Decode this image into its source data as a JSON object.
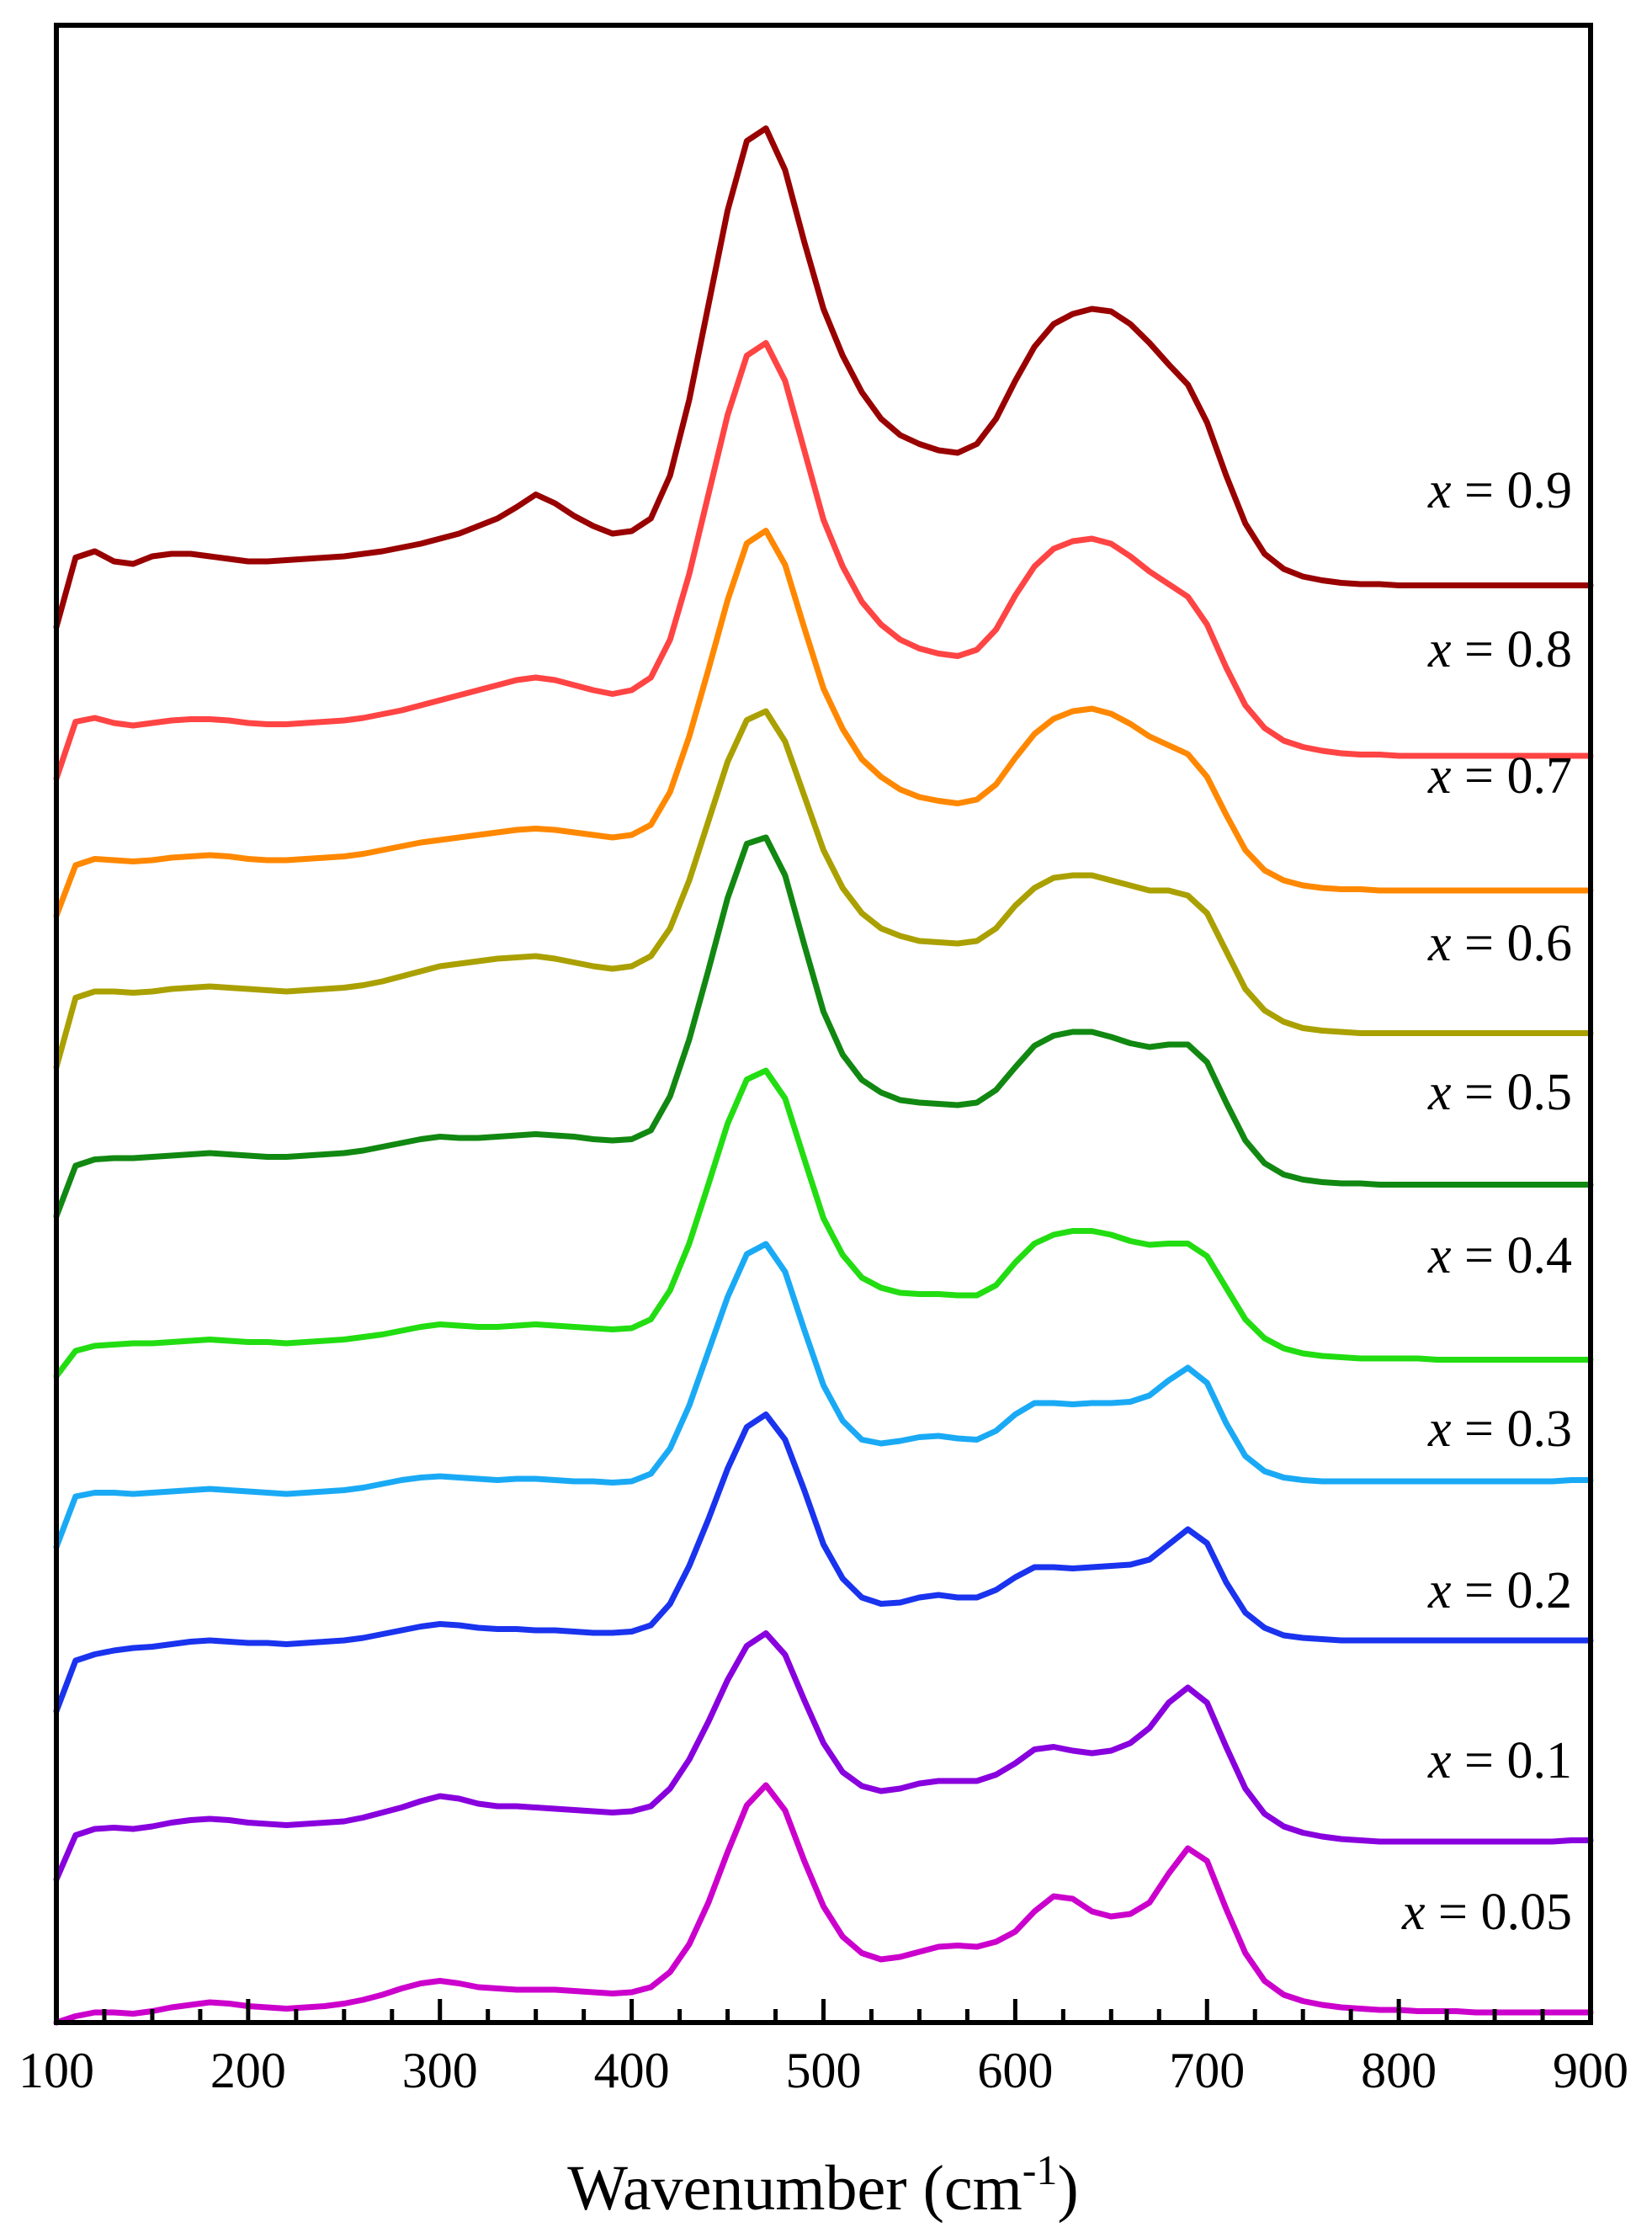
{
  "chart_data": {
    "type": "line",
    "title": "",
    "xlabel": "Wavenumber (cm",
    "xlabel_sup": "-1",
    "xlabel_close": ")",
    "ylabel": "",
    "xlim": [
      100,
      900
    ],
    "x_ticks": [
      100,
      200,
      300,
      400,
      500,
      600,
      700,
      800,
      900
    ],
    "y_axis_shown": false,
    "grid": false,
    "legend": "inline-right",
    "x": [
      100,
      110,
      120,
      130,
      140,
      150,
      160,
      170,
      180,
      190,
      200,
      210,
      220,
      230,
      240,
      250,
      260,
      270,
      280,
      290,
      300,
      310,
      320,
      330,
      340,
      350,
      360,
      370,
      380,
      390,
      400,
      410,
      420,
      430,
      440,
      450,
      460,
      470,
      480,
      490,
      500,
      510,
      520,
      530,
      540,
      550,
      560,
      570,
      580,
      590,
      600,
      610,
      620,
      630,
      640,
      650,
      660,
      670,
      680,
      690,
      700,
      710,
      720,
      730,
      740,
      750,
      760,
      770,
      780,
      790,
      800,
      810,
      820,
      830,
      840,
      850,
      860,
      870,
      880,
      890,
      900
    ],
    "series": [
      {
        "label_var": "x",
        "label_val": "0.05",
        "color": "#cc00cc",
        "values": [
          0.0,
          0.05,
          0.08,
          0.08,
          0.07,
          0.09,
          0.12,
          0.14,
          0.16,
          0.15,
          0.13,
          0.12,
          0.11,
          0.12,
          0.13,
          0.15,
          0.18,
          0.22,
          0.27,
          0.31,
          0.33,
          0.31,
          0.28,
          0.27,
          0.26,
          0.26,
          0.26,
          0.25,
          0.24,
          0.23,
          0.24,
          0.28,
          0.4,
          0.62,
          0.95,
          1.35,
          1.72,
          1.88,
          1.68,
          1.28,
          0.92,
          0.68,
          0.55,
          0.5,
          0.52,
          0.56,
          0.6,
          0.61,
          0.6,
          0.64,
          0.72,
          0.88,
          1.0,
          0.98,
          0.88,
          0.84,
          0.86,
          0.95,
          1.18,
          1.38,
          1.28,
          0.9,
          0.55,
          0.33,
          0.22,
          0.17,
          0.14,
          0.12,
          0.11,
          0.1,
          0.1,
          0.09,
          0.09,
          0.09,
          0.08,
          0.08,
          0.08,
          0.08,
          0.08,
          0.08,
          0.08
        ]
      },
      {
        "label_var": "x",
        "label_val": "0.1",
        "color": "#8800dd",
        "values": [
          0.0,
          0.35,
          0.4,
          0.41,
          0.4,
          0.42,
          0.45,
          0.47,
          0.48,
          0.47,
          0.45,
          0.44,
          0.43,
          0.44,
          0.45,
          0.46,
          0.49,
          0.53,
          0.57,
          0.62,
          0.66,
          0.64,
          0.6,
          0.58,
          0.58,
          0.57,
          0.56,
          0.55,
          0.54,
          0.53,
          0.54,
          0.58,
          0.72,
          0.95,
          1.25,
          1.58,
          1.85,
          1.95,
          1.78,
          1.42,
          1.08,
          0.85,
          0.74,
          0.7,
          0.72,
          0.76,
          0.78,
          0.78,
          0.78,
          0.83,
          0.92,
          1.03,
          1.05,
          1.02,
          1.0,
          1.02,
          1.08,
          1.2,
          1.4,
          1.52,
          1.4,
          1.05,
          0.72,
          0.52,
          0.42,
          0.37,
          0.34,
          0.32,
          0.31,
          0.3,
          0.3,
          0.3,
          0.3,
          0.3,
          0.3,
          0.3,
          0.3,
          0.3,
          0.3,
          0.31,
          0.31
        ]
      },
      {
        "label_var": "x",
        "label_val": "0.2",
        "color": "#1a33ee",
        "values": [
          0.0,
          0.4,
          0.45,
          0.48,
          0.5,
          0.51,
          0.53,
          0.55,
          0.56,
          0.55,
          0.54,
          0.54,
          0.53,
          0.54,
          0.55,
          0.56,
          0.58,
          0.61,
          0.64,
          0.67,
          0.69,
          0.68,
          0.66,
          0.65,
          0.65,
          0.64,
          0.64,
          0.63,
          0.62,
          0.62,
          0.63,
          0.68,
          0.85,
          1.15,
          1.52,
          1.92,
          2.25,
          2.35,
          2.15,
          1.75,
          1.32,
          1.05,
          0.9,
          0.85,
          0.86,
          0.9,
          0.92,
          0.9,
          0.9,
          0.96,
          1.06,
          1.14,
          1.14,
          1.13,
          1.14,
          1.15,
          1.16,
          1.2,
          1.32,
          1.44,
          1.33,
          1.02,
          0.78,
          0.66,
          0.6,
          0.58,
          0.57,
          0.56,
          0.56,
          0.56,
          0.56,
          0.56,
          0.56,
          0.56,
          0.56,
          0.56,
          0.56,
          0.56,
          0.56,
          0.56,
          0.56
        ]
      },
      {
        "label_var": "x",
        "label_val": "0.3",
        "color": "#1aaaf5",
        "values": [
          0.0,
          0.4,
          0.43,
          0.43,
          0.42,
          0.43,
          0.44,
          0.45,
          0.46,
          0.45,
          0.44,
          0.43,
          0.42,
          0.43,
          0.44,
          0.45,
          0.47,
          0.5,
          0.53,
          0.55,
          0.56,
          0.55,
          0.54,
          0.53,
          0.54,
          0.54,
          0.53,
          0.52,
          0.52,
          0.51,
          0.52,
          0.58,
          0.78,
          1.12,
          1.55,
          1.98,
          2.32,
          2.4,
          2.18,
          1.72,
          1.28,
          1.0,
          0.85,
          0.82,
          0.84,
          0.87,
          0.88,
          0.86,
          0.85,
          0.92,
          1.05,
          1.14,
          1.14,
          1.13,
          1.14,
          1.14,
          1.15,
          1.2,
          1.32,
          1.42,
          1.3,
          0.98,
          0.72,
          0.6,
          0.55,
          0.53,
          0.52,
          0.52,
          0.52,
          0.52,
          0.52,
          0.52,
          0.52,
          0.52,
          0.52,
          0.52,
          0.52,
          0.52,
          0.52,
          0.53,
          0.53
        ]
      },
      {
        "label_var": "x",
        "label_val": "0.4",
        "color": "#22dd11",
        "values": [
          0.0,
          0.2,
          0.24,
          0.25,
          0.26,
          0.26,
          0.27,
          0.28,
          0.29,
          0.28,
          0.27,
          0.27,
          0.26,
          0.27,
          0.28,
          0.29,
          0.31,
          0.33,
          0.36,
          0.39,
          0.41,
          0.4,
          0.39,
          0.39,
          0.4,
          0.41,
          0.4,
          0.39,
          0.38,
          0.37,
          0.38,
          0.45,
          0.68,
          1.05,
          1.52,
          2.0,
          2.35,
          2.42,
          2.2,
          1.72,
          1.25,
          0.96,
          0.78,
          0.7,
          0.66,
          0.65,
          0.65,
          0.64,
          0.64,
          0.72,
          0.9,
          1.05,
          1.12,
          1.15,
          1.15,
          1.12,
          1.07,
          1.04,
          1.05,
          1.05,
          0.95,
          0.7,
          0.45,
          0.3,
          0.22,
          0.18,
          0.16,
          0.15,
          0.14,
          0.14,
          0.14,
          0.14,
          0.13,
          0.13,
          0.13,
          0.13,
          0.13,
          0.13,
          0.13,
          0.13,
          0.13
        ]
      },
      {
        "label_var": "x",
        "label_val": "0.5",
        "color": "#118811",
        "values": [
          0.0,
          0.4,
          0.45,
          0.46,
          0.46,
          0.47,
          0.48,
          0.49,
          0.5,
          0.49,
          0.48,
          0.47,
          0.47,
          0.48,
          0.49,
          0.5,
          0.52,
          0.55,
          0.58,
          0.61,
          0.63,
          0.62,
          0.62,
          0.63,
          0.64,
          0.65,
          0.64,
          0.63,
          0.61,
          0.6,
          0.61,
          0.68,
          0.95,
          1.4,
          1.95,
          2.52,
          2.95,
          3.0,
          2.7,
          2.15,
          1.62,
          1.28,
          1.08,
          0.98,
          0.92,
          0.9,
          0.89,
          0.88,
          0.9,
          1.0,
          1.18,
          1.35,
          1.43,
          1.46,
          1.46,
          1.42,
          1.37,
          1.34,
          1.36,
          1.36,
          1.22,
          0.9,
          0.6,
          0.42,
          0.33,
          0.29,
          0.27,
          0.26,
          0.26,
          0.25,
          0.25,
          0.25,
          0.25,
          0.25,
          0.25,
          0.25,
          0.25,
          0.25,
          0.25,
          0.25,
          0.25
        ]
      },
      {
        "label_var": "x",
        "label_val": "0.6",
        "color": "#aaa000",
        "values": [
          0.0,
          0.55,
          0.6,
          0.6,
          0.59,
          0.6,
          0.62,
          0.63,
          0.64,
          0.63,
          0.62,
          0.61,
          0.6,
          0.61,
          0.62,
          0.63,
          0.65,
          0.68,
          0.72,
          0.76,
          0.8,
          0.82,
          0.84,
          0.86,
          0.87,
          0.88,
          0.86,
          0.83,
          0.8,
          0.78,
          0.8,
          0.88,
          1.1,
          1.48,
          1.95,
          2.42,
          2.75,
          2.82,
          2.58,
          2.15,
          1.72,
          1.42,
          1.22,
          1.1,
          1.04,
          1.0,
          0.99,
          0.98,
          1.0,
          1.1,
          1.28,
          1.42,
          1.5,
          1.52,
          1.52,
          1.48,
          1.44,
          1.4,
          1.4,
          1.36,
          1.22,
          0.92,
          0.62,
          0.45,
          0.36,
          0.31,
          0.29,
          0.28,
          0.27,
          0.27,
          0.27,
          0.27,
          0.27,
          0.27,
          0.27,
          0.27,
          0.27,
          0.27,
          0.27,
          0.27,
          0.27
        ]
      },
      {
        "label_var": "x",
        "label_val": "0.7",
        "color": "#ff8800",
        "values": [
          0.0,
          0.4,
          0.45,
          0.44,
          0.43,
          0.44,
          0.46,
          0.47,
          0.48,
          0.47,
          0.45,
          0.44,
          0.44,
          0.45,
          0.46,
          0.47,
          0.49,
          0.52,
          0.55,
          0.58,
          0.6,
          0.62,
          0.64,
          0.66,
          0.68,
          0.69,
          0.68,
          0.66,
          0.64,
          0.62,
          0.64,
          0.72,
          0.98,
          1.42,
          1.95,
          2.5,
          2.95,
          3.05,
          2.78,
          2.28,
          1.8,
          1.48,
          1.24,
          1.1,
          1.0,
          0.94,
          0.91,
          0.89,
          0.92,
          1.04,
          1.25,
          1.44,
          1.56,
          1.62,
          1.64,
          1.6,
          1.52,
          1.42,
          1.35,
          1.28,
          1.1,
          0.8,
          0.52,
          0.36,
          0.28,
          0.24,
          0.22,
          0.21,
          0.21,
          0.2,
          0.2,
          0.2,
          0.2,
          0.2,
          0.2,
          0.2,
          0.2,
          0.2,
          0.2,
          0.2,
          0.2
        ]
      },
      {
        "label_var": "x",
        "label_val": "0.8",
        "color": "#ff4444",
        "values": [
          0.0,
          0.45,
          0.48,
          0.44,
          0.42,
          0.44,
          0.46,
          0.47,
          0.47,
          0.46,
          0.44,
          0.43,
          0.43,
          0.44,
          0.45,
          0.46,
          0.48,
          0.51,
          0.54,
          0.58,
          0.62,
          0.66,
          0.7,
          0.74,
          0.78,
          0.8,
          0.78,
          0.74,
          0.7,
          0.67,
          0.7,
          0.8,
          1.1,
          1.62,
          2.25,
          2.88,
          3.35,
          3.45,
          3.15,
          2.6,
          2.05,
          1.68,
          1.4,
          1.22,
          1.1,
          1.03,
          0.99,
          0.97,
          1.02,
          1.18,
          1.45,
          1.68,
          1.82,
          1.88,
          1.9,
          1.86,
          1.76,
          1.64,
          1.54,
          1.44,
          1.22,
          0.88,
          0.58,
          0.4,
          0.3,
          0.25,
          0.22,
          0.2,
          0.19,
          0.19,
          0.18,
          0.18,
          0.18,
          0.18,
          0.18,
          0.18,
          0.18,
          0.18,
          0.18,
          0.18,
          0.18
        ]
      },
      {
        "label_var": "x",
        "label_val": "0.9",
        "color": "#990000",
        "values": [
          0.0,
          0.55,
          0.6,
          0.52,
          0.5,
          0.56,
          0.58,
          0.58,
          0.56,
          0.54,
          0.52,
          0.52,
          0.53,
          0.54,
          0.55,
          0.56,
          0.58,
          0.6,
          0.63,
          0.66,
          0.7,
          0.74,
          0.8,
          0.86,
          0.95,
          1.05,
          0.98,
          0.88,
          0.8,
          0.74,
          0.76,
          0.86,
          1.2,
          1.8,
          2.55,
          3.3,
          3.85,
          3.95,
          3.62,
          3.05,
          2.52,
          2.15,
          1.86,
          1.65,
          1.52,
          1.45,
          1.4,
          1.38,
          1.45,
          1.65,
          1.95,
          2.22,
          2.4,
          2.48,
          2.52,
          2.5,
          2.4,
          2.25,
          2.08,
          1.92,
          1.62,
          1.2,
          0.82,
          0.58,
          0.46,
          0.4,
          0.37,
          0.35,
          0.34,
          0.34,
          0.33,
          0.33,
          0.33,
          0.33,
          0.33,
          0.33,
          0.33,
          0.33,
          0.33,
          0.33,
          0.33
        ]
      }
    ]
  }
}
